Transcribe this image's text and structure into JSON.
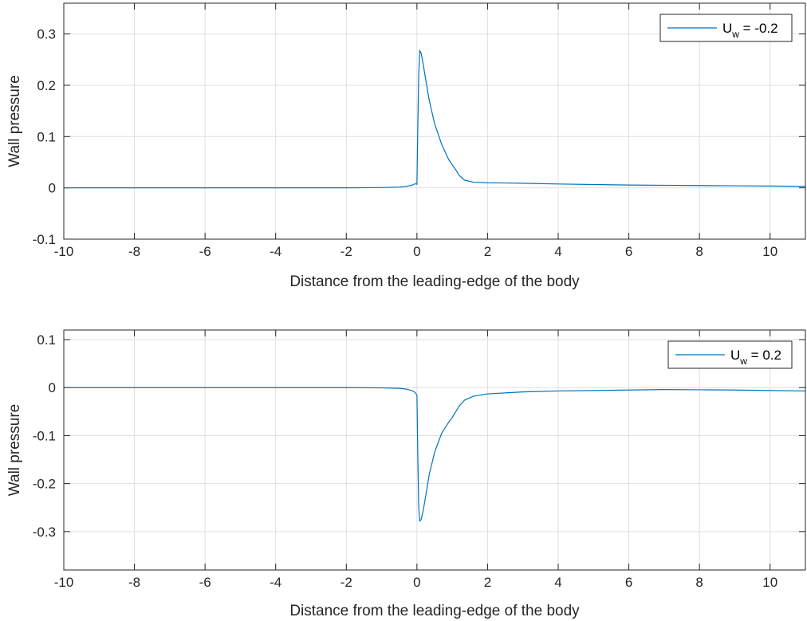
{
  "colors": {
    "series": "#0072BD",
    "grid": "#dfdfdf",
    "axis": "#262626",
    "background": "#ffffff"
  },
  "chart_data": [
    {
      "type": "line",
      "title": "",
      "xlabel": "Distance from the leading-edge of the body",
      "ylabel": "Wall pressure",
      "xlim": [
        -10,
        11
      ],
      "ylim": [
        -0.1,
        0.36
      ],
      "xticks": [
        -10,
        -8,
        -6,
        -4,
        -2,
        0,
        2,
        4,
        6,
        8,
        10
      ],
      "xtick_labels": [
        "-10",
        "-8",
        "-6",
        "-4",
        "-2",
        "0",
        "2",
        "4",
        "6",
        "8",
        "10"
      ],
      "yticks": [
        -0.1,
        0,
        0.1,
        0.2,
        0.3
      ],
      "ytick_labels": [
        "-0.1",
        "0",
        "0.1",
        "0.2",
        "0.3"
      ],
      "grid": true,
      "legend_position": "top-right",
      "legend": {
        "main": "U",
        "sub": "w",
        "rest": " = -0.2"
      },
      "series": [
        {
          "name": "U_w = -0.2",
          "x": [
            -10,
            -6,
            -2,
            -1,
            -0.5,
            -0.3,
            -0.15,
            -0.05,
            0,
            0.02,
            0.05,
            0.08,
            0.12,
            0.18,
            0.25,
            0.35,
            0.5,
            0.7,
            0.9,
            1.0,
            1.1,
            1.2,
            1.35,
            1.6,
            2,
            3,
            4,
            5,
            6,
            7,
            8,
            9,
            10,
            11
          ],
          "y": [
            0,
            0,
            0,
            0.0005,
            0.0015,
            0.003,
            0.005,
            0.008,
            0.007,
            0.1,
            0.22,
            0.268,
            0.262,
            0.24,
            0.21,
            0.17,
            0.125,
            0.085,
            0.055,
            0.045,
            0.035,
            0.024,
            0.015,
            0.011,
            0.01,
            0.009,
            0.0075,
            0.0065,
            0.0055,
            0.005,
            0.0045,
            0.004,
            0.0035,
            0.003
          ]
        }
      ]
    },
    {
      "type": "line",
      "title": "",
      "xlabel": "Distance from the leading-edge of the body",
      "ylabel": "Wall pressure",
      "xlim": [
        -10,
        11
      ],
      "ylim": [
        -0.38,
        0.12
      ],
      "xticks": [
        -10,
        -8,
        -6,
        -4,
        -2,
        0,
        2,
        4,
        6,
        8,
        10
      ],
      "xtick_labels": [
        "-10",
        "-8",
        "-6",
        "-4",
        "-2",
        "0",
        "2",
        "4",
        "6",
        "8",
        "10"
      ],
      "yticks": [
        -0.3,
        -0.2,
        -0.1,
        0,
        0.1
      ],
      "ytick_labels": [
        "-0.3",
        "-0.2",
        "-0.1",
        "0",
        "0.1"
      ],
      "grid": true,
      "legend_position": "top-right",
      "legend": {
        "main": "U",
        "sub": "w",
        "rest": " = 0.2"
      },
      "series": [
        {
          "name": "U_w = 0.2",
          "x": [
            -10,
            -6,
            -2,
            -1,
            -0.5,
            -0.3,
            -0.15,
            -0.05,
            0,
            0.02,
            0.05,
            0.08,
            0.12,
            0.18,
            0.25,
            0.35,
            0.5,
            0.7,
            0.9,
            1.0,
            1.1,
            1.2,
            1.35,
            1.6,
            2,
            3,
            4,
            5,
            6,
            7,
            8,
            9,
            10,
            11
          ],
          "y": [
            0,
            0,
            0,
            -0.0005,
            -0.0015,
            -0.003,
            -0.006,
            -0.01,
            -0.016,
            -0.12,
            -0.25,
            -0.278,
            -0.275,
            -0.255,
            -0.225,
            -0.18,
            -0.135,
            -0.095,
            -0.072,
            -0.062,
            -0.05,
            -0.038,
            -0.026,
            -0.018,
            -0.013,
            -0.009,
            -0.007,
            -0.006,
            -0.005,
            -0.004,
            -0.0045,
            -0.005,
            -0.006,
            -0.007
          ]
        }
      ]
    }
  ]
}
